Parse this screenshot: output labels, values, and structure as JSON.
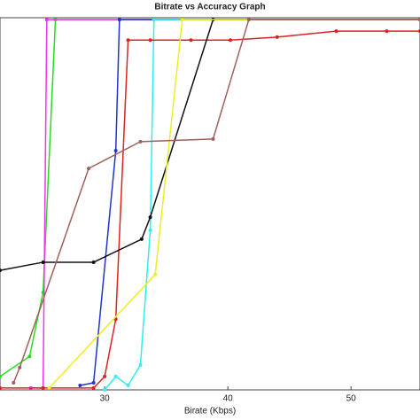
{
  "chart_data": {
    "type": "line",
    "title": "Bitrate vs Accuracy Graph",
    "x_label": "Birate (Kbps)",
    "xlim": [
      21.5,
      55.6
    ],
    "xticks": [
      30,
      40,
      50
    ],
    "ylim": [
      0,
      100
    ],
    "series": [
      {
        "color": "#22dd22",
        "x": [
          21.5,
          23.9,
          25.0,
          26.0,
          55.6
        ],
        "values": [
          3.6,
          9,
          26.2,
          99.5,
          99.5
        ]
      },
      {
        "color": "#ee33ee",
        "x": [
          24.0,
          25.0,
          25.3,
          55.6
        ],
        "values": [
          0.5,
          0.5,
          99.5,
          99.5
        ]
      },
      {
        "color": "#2233cc",
        "x": [
          28.0,
          29.1,
          30.9,
          31.2,
          55.6
        ],
        "values": [
          1.2,
          1.9,
          64.3,
          99.5,
          99.5
        ]
      },
      {
        "color": "#33eeee",
        "x": [
          30.0,
          30.9,
          31.9,
          32.9,
          33.7,
          34.0,
          55.6
        ],
        "values": [
          0,
          3.6,
          1.2,
          6.7,
          42.9,
          99.5,
          99.5
        ]
      },
      {
        "color": "#dd2222",
        "x": [
          21.5,
          25.0,
          29.1,
          30.0,
          30.9,
          31.9,
          33.7,
          37.0,
          40.2,
          44.0,
          48.8,
          52.9,
          55.6
        ],
        "values": [
          0.5,
          0.5,
          0.5,
          3.6,
          19,
          94,
          94,
          94,
          94,
          94.8,
          96.4,
          96.4,
          96.4
        ]
      },
      {
        "color": "#111111",
        "x": [
          21.5,
          25.0,
          29.1,
          33.0,
          33.7,
          38.8,
          55.6
        ],
        "values": [
          32.1,
          34.3,
          34.3,
          40.5,
          46.4,
          99.5,
          99.5
        ]
      },
      {
        "color": "#eeee22",
        "x": [
          25.5,
          34.1,
          36.3,
          55.6
        ],
        "values": [
          0.5,
          31,
          99.5,
          99.5
        ]
      },
      {
        "color": "#a0605a",
        "x": [
          22.6,
          23.1,
          28.7,
          32.9,
          38.8,
          41.7,
          55.6
        ],
        "values": [
          1.9,
          6,
          59.5,
          66.7,
          67.4,
          99.5,
          99.5
        ]
      }
    ]
  }
}
